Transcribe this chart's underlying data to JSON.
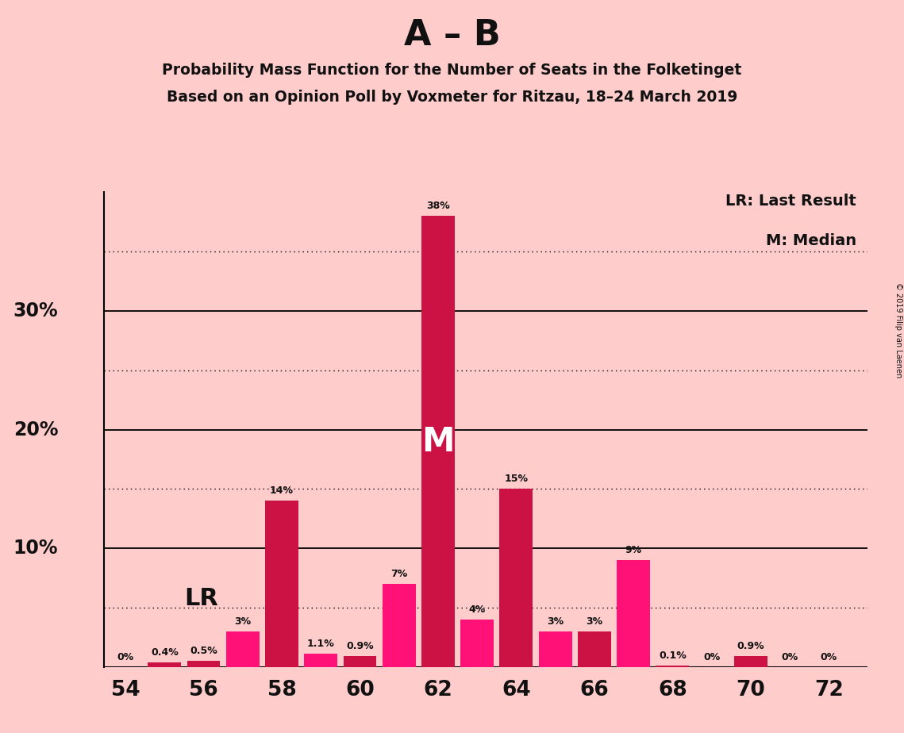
{
  "title_main": "A – B",
  "title_sub1": "Probability Mass Function for the Number of Seats in the Folketinget",
  "title_sub2": "Based on an Opinion Poll by Voxmeter for Ritzau, 18–24 March 2019",
  "copyright": "© 2019 Filip van Laenen",
  "legend_lr": "LR: Last Result",
  "legend_m": "M: Median",
  "seats": [
    54,
    55,
    56,
    57,
    58,
    59,
    60,
    61,
    62,
    63,
    64,
    65,
    66,
    67,
    68,
    69,
    70,
    71,
    72
  ],
  "values": [
    0.0,
    0.4,
    0.5,
    3.0,
    14.0,
    1.1,
    0.9,
    7.0,
    38.0,
    4.0,
    15.0,
    3.0,
    3.0,
    9.0,
    0.1,
    0.0,
    0.9,
    0.0,
    0.0
  ],
  "labels": [
    "0%",
    "0.4%",
    "0.5%",
    "3%",
    "14%",
    "1.1%",
    "0.9%",
    "7%",
    "38%",
    "4%",
    "15%",
    "3%",
    "3%",
    "9%",
    "0.1%",
    "0%",
    "0.9%",
    "0%",
    "0%"
  ],
  "colors": [
    "#CC1144",
    "#CC1144",
    "#CC1144",
    "#FF1177",
    "#CC1144",
    "#FF1177",
    "#CC1144",
    "#FF1177",
    "#CC1144",
    "#FF1177",
    "#CC1144",
    "#FF1177",
    "#CC1144",
    "#FF1177",
    "#CC1144",
    "#FF1177",
    "#CC1144",
    "#FF1177",
    "#CC1144"
  ],
  "background_color": "#FFCCCC",
  "bar_width": 0.85,
  "xlim": [
    53.45,
    73.0
  ],
  "ylim": [
    0,
    42
  ],
  "ytick_labels_shown": [
    "10%",
    "20%",
    "30%"
  ],
  "ytick_positions_shown": [
    10,
    20,
    30
  ],
  "xticks": [
    54,
    56,
    58,
    60,
    62,
    64,
    66,
    68,
    70,
    72
  ],
  "median_seat": 62,
  "dotted_line_y": [
    5,
    15,
    25,
    35
  ],
  "solid_line_y": [
    10,
    20,
    30
  ],
  "font_color": "#111111",
  "lr_x": 55.5,
  "lr_y": 5.8
}
